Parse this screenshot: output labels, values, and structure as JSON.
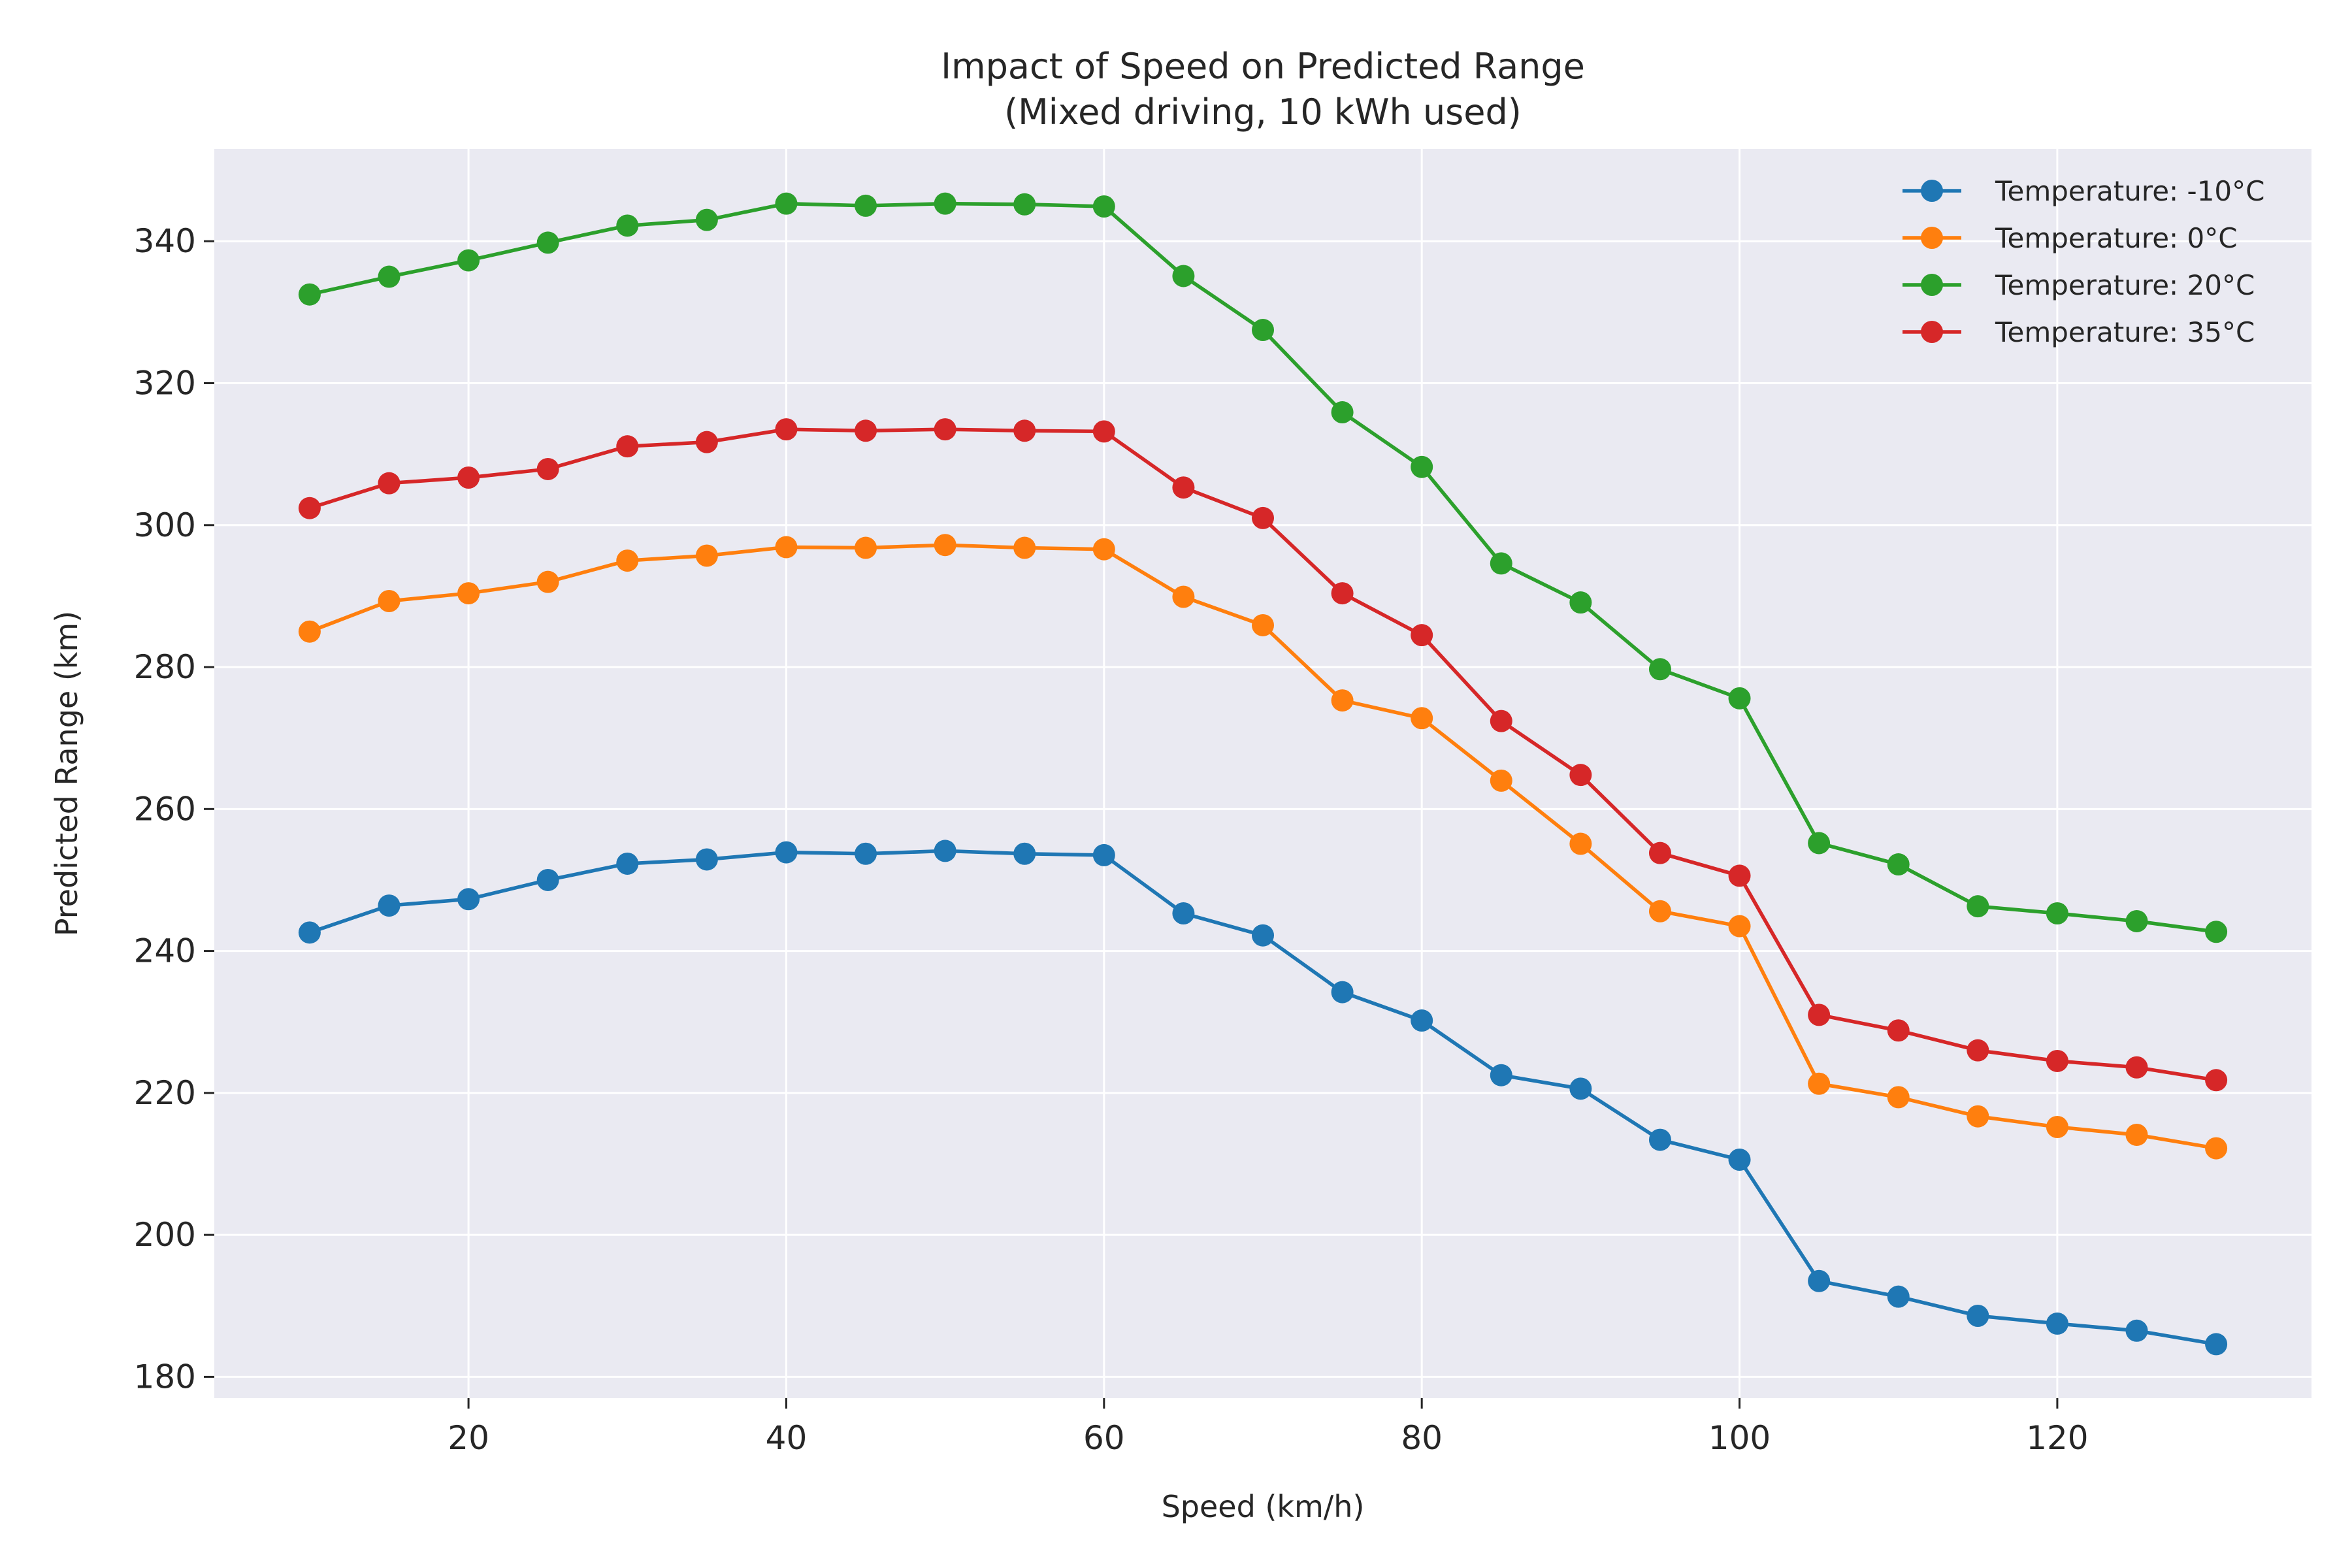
{
  "chart_data": {
    "type": "line",
    "title": "Impact of Speed on Predicted Range",
    "subtitle": "(Mixed driving, 10 kWh used)",
    "xlabel": "Speed (km/h)",
    "ylabel": "Predicted Range (km)",
    "xlim": [
      4,
      136
    ],
    "ylim": [
      177,
      353
    ],
    "x_ticks": [
      20,
      40,
      60,
      80,
      100,
      120
    ],
    "y_ticks": [
      180,
      200,
      220,
      240,
      260,
      280,
      300,
      320,
      340
    ],
    "grid": true,
    "legend_position": "top-right",
    "x": [
      10,
      15,
      20,
      25,
      30,
      35,
      40,
      45,
      50,
      55,
      60,
      65,
      70,
      75,
      80,
      85,
      90,
      95,
      100,
      105,
      110,
      115,
      120,
      125,
      130
    ],
    "series": [
      {
        "name": "Temperature: -10°C",
        "color": "#1f77b4",
        "values": [
          242.6,
          246.4,
          247.3,
          250.0,
          252.3,
          252.9,
          253.9,
          253.7,
          254.1,
          253.7,
          253.5,
          245.3,
          242.2,
          234.2,
          230.2,
          222.5,
          220.6,
          213.4,
          210.6,
          193.5,
          191.3,
          188.6,
          187.5,
          186.5,
          184.6
        ]
      },
      {
        "name": "Temperature: 0°C",
        "color": "#ff7f0e",
        "values": [
          285.0,
          289.3,
          290.4,
          292.0,
          295.0,
          295.7,
          296.9,
          296.8,
          297.2,
          296.8,
          296.6,
          289.9,
          285.9,
          275.3,
          272.8,
          264.0,
          255.1,
          245.6,
          243.5,
          221.3,
          219.4,
          216.7,
          215.2,
          214.1,
          212.2
        ]
      },
      {
        "name": "Temperature: 20°C",
        "color": "#2ca02c",
        "values": [
          332.5,
          335.0,
          337.3,
          339.8,
          342.2,
          343.0,
          345.3,
          345.0,
          345.3,
          345.2,
          344.9,
          335.1,
          327.5,
          315.9,
          308.2,
          294.6,
          289.1,
          279.7,
          275.6,
          255.2,
          252.2,
          246.3,
          245.3,
          244.2,
          242.7
        ]
      },
      {
        "name": "Temperature: 35°C",
        "color": "#d62728",
        "values": [
          302.4,
          305.9,
          306.7,
          307.9,
          311.1,
          311.7,
          313.5,
          313.3,
          313.5,
          313.3,
          313.2,
          305.3,
          301.0,
          290.4,
          284.5,
          272.4,
          264.8,
          253.8,
          250.6,
          231.0,
          228.8,
          226.0,
          224.5,
          223.6,
          221.8
        ]
      }
    ],
    "style": {
      "plot_background": "#eaeaf2",
      "grid_color": "#ffffff",
      "text_color": "#262626"
    }
  }
}
